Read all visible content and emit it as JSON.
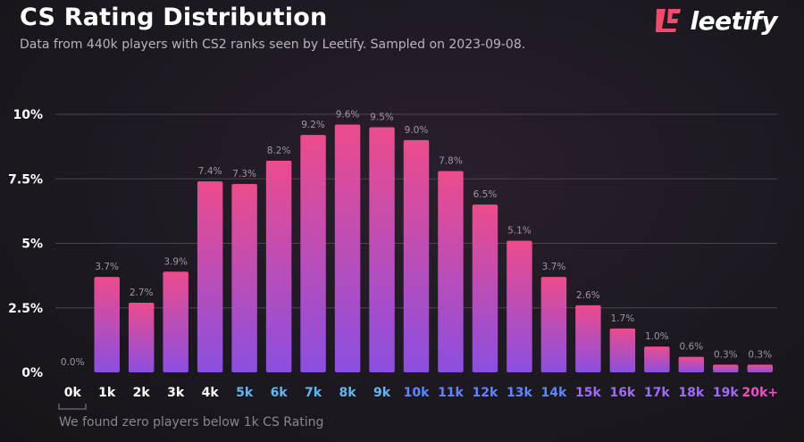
{
  "header": {
    "title": "CS Rating Distribution",
    "subtitle": "Data from 440k players with CS2 ranks seen by Leetify. Sampled on 2023-09-08.",
    "logo_text": "leetify"
  },
  "footnote": "We found zero players below 1k CS Rating",
  "colors": {
    "bar_top": "#ec4c8c",
    "bar_bottom": "#8b4fe0",
    "axis": "#e94f8a",
    "grid": "#4a4450"
  },
  "chart_data": {
    "type": "bar",
    "title": "CS Rating Distribution",
    "xlabel": "",
    "ylabel": "",
    "ylim": [
      0,
      10
    ],
    "yticks": [
      {
        "value": 0,
        "label": "0%"
      },
      {
        "value": 2.5,
        "label": "2.5%"
      },
      {
        "value": 5,
        "label": "5%"
      },
      {
        "value": 7.5,
        "label": "7.5%"
      },
      {
        "value": 10,
        "label": "10%"
      }
    ],
    "categories": [
      "0k",
      "1k",
      "2k",
      "3k",
      "4k",
      "5k",
      "6k",
      "7k",
      "8k",
      "9k",
      "10k",
      "11k",
      "12k",
      "13k",
      "14k",
      "15k",
      "16k",
      "17k",
      "18k",
      "19k",
      "20k+"
    ],
    "category_colors": [
      "#ffffff",
      "#ffffff",
      "#ffffff",
      "#ffffff",
      "#ffffff",
      "#63b6f2",
      "#63b6f2",
      "#63b6f2",
      "#63b6f2",
      "#63b6f2",
      "#5f86ff",
      "#5f86ff",
      "#5f86ff",
      "#5f86ff",
      "#5f86ff",
      "#a06bf5",
      "#a06bf5",
      "#a06bf5",
      "#a06bf5",
      "#a06bf5",
      "#ef4fc0"
    ],
    "values": [
      0.0,
      3.7,
      2.7,
      3.9,
      7.4,
      7.3,
      8.2,
      9.2,
      9.6,
      9.5,
      9.0,
      7.8,
      6.5,
      5.1,
      3.7,
      2.6,
      1.7,
      1.0,
      0.6,
      0.3,
      0.3
    ],
    "value_labels": [
      "0.0%",
      "3.7%",
      "2.7%",
      "3.9%",
      "7.4%",
      "7.3%",
      "8.2%",
      "9.2%",
      "9.6%",
      "9.5%",
      "9.0%",
      "7.8%",
      "6.5%",
      "5.1%",
      "3.7%",
      "2.6%",
      "1.7%",
      "1.0%",
      "0.6%",
      "0.3%",
      "0.3%"
    ],
    "grid": true
  }
}
